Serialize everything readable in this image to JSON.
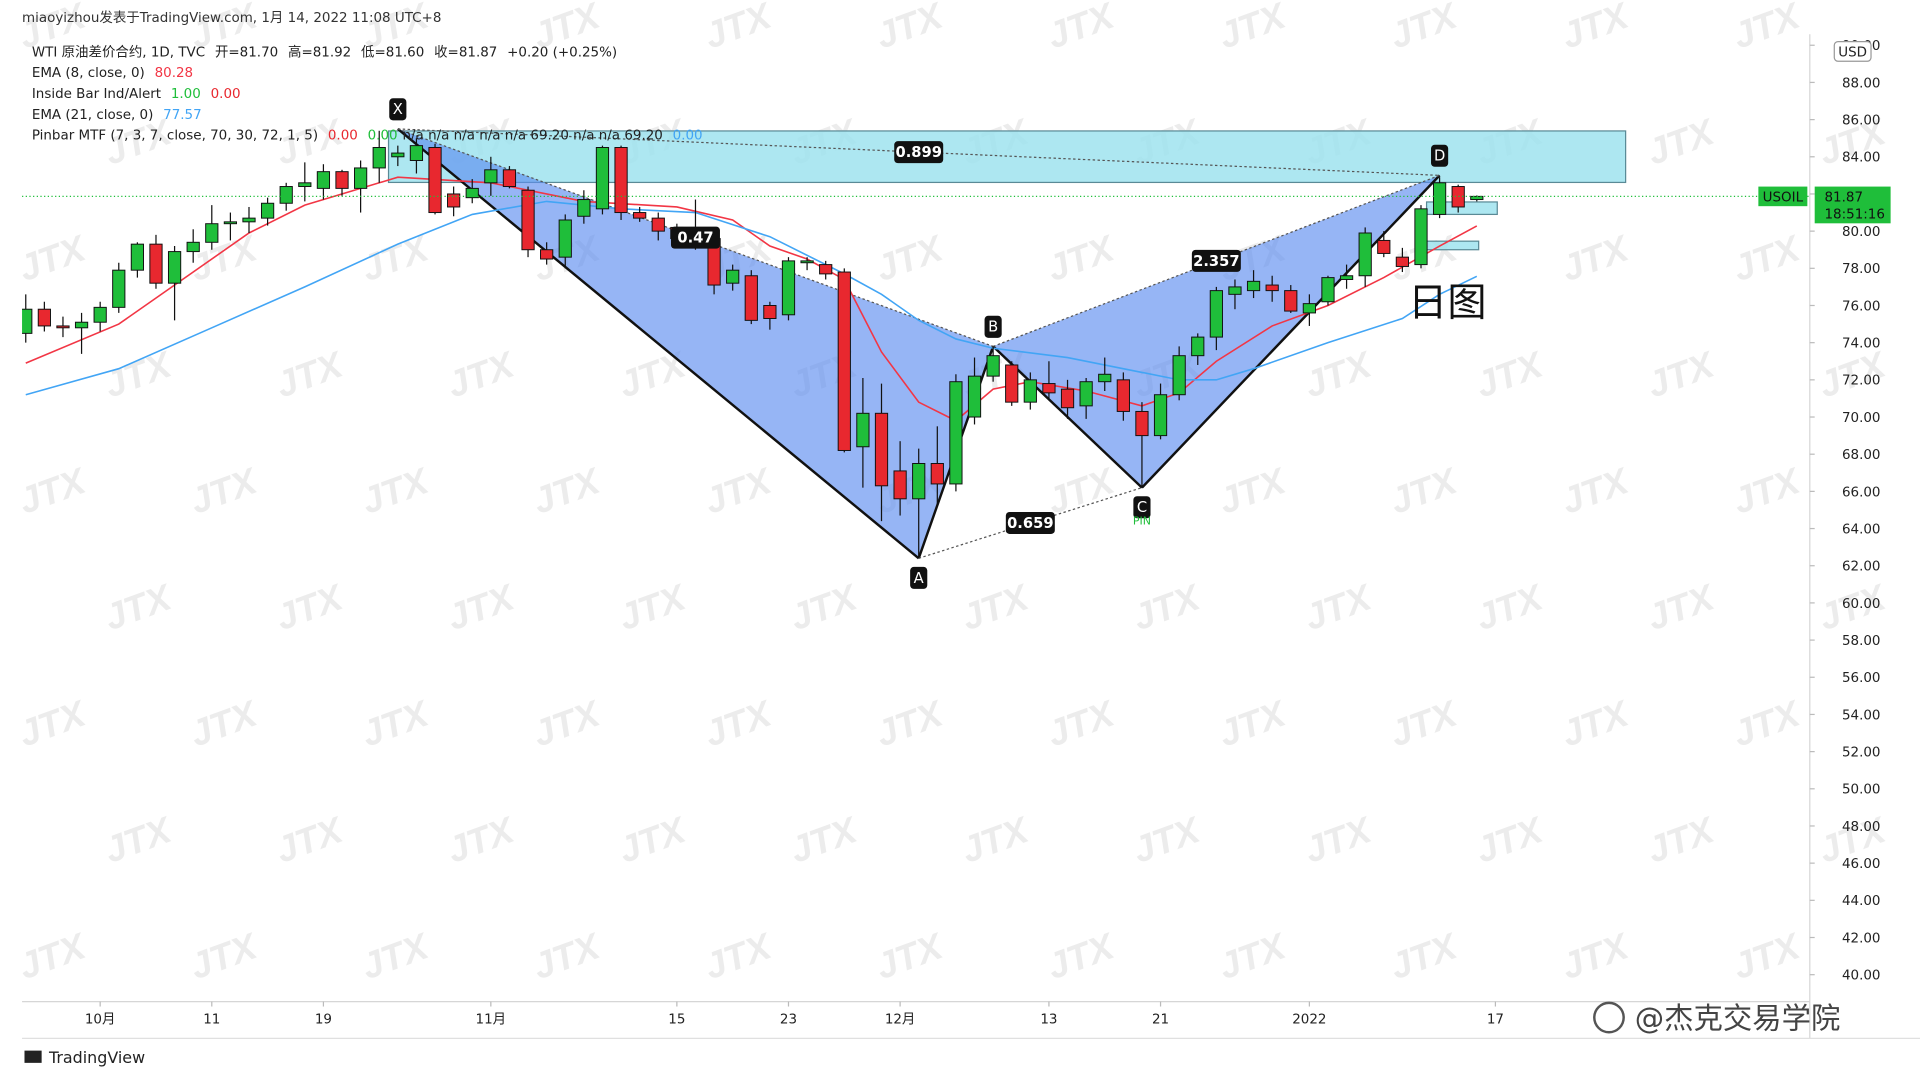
{
  "header": {
    "author": "miaoyizhou发表于TradingView.com, 1月 14, 2022 11:08 UTC+8",
    "logo": "TradingView",
    "currency": "USD",
    "symbol": "USOIL",
    "countdown": "18:51:16",
    "annotation": "日图",
    "signature": "@杰克交易学院",
    "watermark": "JTX",
    "pin": "PIN"
  },
  "legend": {
    "line1": [
      "WTI 原油差价合约, 1D, TVC",
      "开=81.70",
      "高=81.92",
      "低=81.60",
      "收=81.87",
      "+0.20 (+0.25%)"
    ],
    "inside_bar": [
      "Inside Bar Ind/Alert",
      "1.00",
      "0.00"
    ],
    "pinbar": [
      "Pinbar MTF (7, 3, 7, close, 70, 30, 72, 1, 5)",
      "0.00",
      "0.00",
      "n/a n/a n/a n/a n/a 69.20 n/a n/a 69.20",
      "0.00"
    ]
  },
  "chart_data": {
    "type": "candlestick",
    "title": "WTI 原油差价合约, 1D, TVC",
    "up_color": "#1fbe3a",
    "down_color": "#e8282f",
    "xlim": [
      -0.2,
      95.9
    ],
    "ylim": [
      38.55,
      90.59
    ],
    "xticks": [
      {
        "value": 4,
        "label": "10月"
      },
      {
        "value": 10,
        "label": "11"
      },
      {
        "value": 16,
        "label": "19"
      },
      {
        "value": 25,
        "label": "11月"
      },
      {
        "value": 35,
        "label": "15"
      },
      {
        "value": 41,
        "label": "23"
      },
      {
        "value": 47,
        "label": "12月"
      },
      {
        "value": 55,
        "label": "13"
      },
      {
        "value": 61,
        "label": "21"
      },
      {
        "value": 69,
        "label": "2022"
      },
      {
        "value": 79,
        "label": "17"
      }
    ],
    "yticks": [
      {
        "value": 40,
        "label": "40.00"
      },
      {
        "value": 42,
        "label": "42.00"
      },
      {
        "value": 44,
        "label": "44.00"
      },
      {
        "value": 46,
        "label": "46.00"
      },
      {
        "value": 48,
        "label": "48.00"
      },
      {
        "value": 50,
        "label": "50.00"
      },
      {
        "value": 52,
        "label": "52.00"
      },
      {
        "value": 54,
        "label": "54.00"
      },
      {
        "value": 56,
        "label": "56.00"
      },
      {
        "value": 58,
        "label": "58.00"
      },
      {
        "value": 60,
        "label": "60.00"
      },
      {
        "value": 62,
        "label": "62.00"
      },
      {
        "value": 64,
        "label": "64.00"
      },
      {
        "value": 66,
        "label": "66.00"
      },
      {
        "value": 68,
        "label": "68.00"
      },
      {
        "value": 70,
        "label": "70.00"
      },
      {
        "value": 72,
        "label": "72.00"
      },
      {
        "value": 74,
        "label": "74.00"
      },
      {
        "value": 76,
        "label": "76.00"
      },
      {
        "value": 78,
        "label": "78.00"
      },
      {
        "value": 80,
        "label": "80.00"
      },
      {
        "value": 82,
        "label": "82.00"
      },
      {
        "value": 84,
        "label": "84.00"
      },
      {
        "value": 86,
        "label": "86.00"
      },
      {
        "value": 88,
        "label": "88.00"
      },
      {
        "value": 90,
        "label": "90.00"
      }
    ],
    "candles": [
      [
        74.5,
        76.6,
        74.0,
        75.8
      ],
      [
        75.8,
        76.2,
        74.6,
        74.9
      ],
      [
        74.9,
        75.4,
        74.3,
        74.8
      ],
      [
        74.8,
        75.6,
        73.4,
        75.1
      ],
      [
        75.1,
        76.2,
        74.6,
        75.9
      ],
      [
        75.9,
        78.3,
        75.6,
        77.9
      ],
      [
        77.9,
        79.4,
        77.5,
        79.3
      ],
      [
        79.3,
        79.8,
        76.9,
        77.2
      ],
      [
        77.2,
        79.2,
        75.2,
        78.9
      ],
      [
        78.9,
        80.1,
        78.3,
        79.4
      ],
      [
        79.4,
        81.4,
        79.0,
        80.4
      ],
      [
        80.4,
        81.0,
        79.5,
        80.5
      ],
      [
        80.5,
        81.3,
        79.9,
        80.7
      ],
      [
        80.7,
        81.8,
        80.3,
        81.5
      ],
      [
        81.5,
        82.6,
        81.1,
        82.4
      ],
      [
        82.4,
        83.7,
        81.6,
        82.6
      ],
      [
        82.3,
        83.6,
        81.7,
        83.2
      ],
      [
        83.2,
        83.3,
        81.9,
        82.3
      ],
      [
        82.3,
        83.8,
        81.0,
        83.4
      ],
      [
        83.4,
        85.4,
        82.6,
        84.5
      ],
      [
        84.0,
        84.6,
        83.5,
        84.2
      ],
      [
        83.8,
        85.0,
        83.1,
        84.6
      ],
      [
        84.5,
        84.7,
        80.9,
        81.0
      ],
      [
        82.0,
        82.4,
        80.8,
        81.3
      ],
      [
        81.8,
        82.8,
        81.5,
        82.3
      ],
      [
        82.6,
        84.0,
        81.9,
        83.3
      ],
      [
        83.3,
        83.5,
        82.3,
        82.4
      ],
      [
        82.2,
        82.4,
        78.6,
        79.0
      ],
      [
        79.0,
        79.4,
        78.2,
        78.5
      ],
      [
        78.6,
        80.9,
        78.0,
        80.6
      ],
      [
        80.8,
        82.2,
        80.4,
        81.7
      ],
      [
        81.2,
        84.6,
        80.9,
        84.5
      ],
      [
        84.5,
        84.6,
        80.6,
        81.0
      ],
      [
        81.0,
        81.3,
        80.5,
        80.7
      ],
      [
        80.7,
        81.0,
        79.5,
        80.0
      ],
      [
        80.2,
        80.4,
        79.4,
        79.6
      ],
      [
        80.0,
        81.7,
        79.0,
        79.3
      ],
      [
        79.6,
        79.8,
        76.6,
        77.1
      ],
      [
        77.2,
        78.2,
        76.8,
        77.9
      ],
      [
        77.6,
        77.9,
        75.0,
        75.2
      ],
      [
        76.0,
        76.2,
        74.7,
        75.3
      ],
      [
        75.5,
        78.6,
        75.2,
        78.4
      ],
      [
        78.3,
        78.6,
        77.9,
        78.4
      ],
      [
        78.2,
        78.4,
        77.4,
        77.7
      ],
      [
        77.8,
        78.0,
        68.1,
        68.2
      ],
      [
        68.4,
        72.1,
        66.2,
        70.2
      ],
      [
        70.2,
        71.8,
        64.4,
        66.3
      ],
      [
        67.1,
        68.7,
        64.7,
        65.6
      ],
      [
        65.6,
        68.3,
        62.4,
        67.5
      ],
      [
        67.5,
        69.5,
        65.3,
        66.4
      ],
      [
        66.4,
        72.3,
        66.0,
        71.9
      ],
      [
        70.0,
        73.2,
        69.6,
        72.2
      ],
      [
        72.2,
        73.8,
        71.9,
        73.3
      ],
      [
        72.8,
        73.0,
        70.6,
        70.8
      ],
      [
        70.8,
        72.4,
        70.4,
        72.0
      ],
      [
        71.8,
        73.0,
        71.0,
        71.3
      ],
      [
        71.5,
        72.0,
        69.9,
        70.5
      ],
      [
        70.6,
        72.1,
        69.9,
        71.9
      ],
      [
        71.9,
        73.2,
        71.4,
        72.3
      ],
      [
        72.0,
        72.4,
        69.8,
        70.3
      ],
      [
        70.3,
        70.8,
        66.2,
        69.0
      ],
      [
        69.0,
        71.8,
        68.8,
        71.2
      ],
      [
        71.2,
        73.8,
        70.9,
        73.3
      ],
      [
        73.3,
        74.5,
        72.8,
        74.3
      ],
      [
        74.3,
        77.0,
        73.6,
        76.8
      ],
      [
        76.6,
        77.4,
        75.8,
        77.0
      ],
      [
        76.8,
        77.9,
        76.4,
        77.3
      ],
      [
        77.1,
        77.6,
        76.2,
        76.8
      ],
      [
        76.8,
        77.1,
        75.6,
        75.7
      ],
      [
        75.6,
        76.6,
        74.9,
        76.1
      ],
      [
        76.2,
        77.6,
        76.0,
        77.5
      ],
      [
        77.4,
        78.2,
        76.9,
        77.6
      ],
      [
        77.6,
        80.2,
        77.0,
        79.9
      ],
      [
        79.5,
        80.0,
        78.6,
        78.8
      ],
      [
        78.6,
        79.1,
        77.8,
        78.1
      ],
      [
        78.2,
        81.4,
        78.0,
        81.2
      ],
      [
        80.9,
        82.9,
        80.7,
        82.6
      ],
      [
        82.4,
        82.5,
        81.0,
        81.3
      ],
      [
        81.7,
        81.92,
        81.6,
        81.87
      ]
    ],
    "series": [
      {
        "name": "EMA (8, close, 0)",
        "color": "#f23645",
        "legend_value": "80.28",
        "x": [
          0,
          5,
          12,
          15,
          20,
          25,
          30,
          35,
          38,
          40,
          42,
          44,
          46,
          48,
          50,
          52,
          54,
          57,
          60,
          62,
          64,
          67,
          70,
          73,
          76,
          78
        ],
        "values": [
          72.9,
          75.0,
          79.9,
          81.4,
          82.9,
          82.6,
          81.6,
          81.3,
          80.6,
          79.2,
          78.5,
          77.4,
          73.5,
          70.8,
          69.8,
          71.5,
          71.9,
          71.4,
          70.6,
          71.3,
          73.0,
          74.9,
          76.0,
          77.5,
          79.2,
          80.28
        ]
      },
      {
        "name": "EMA (21, close, 0)",
        "color": "#42a5f5",
        "legend_value": "77.57",
        "x": [
          0,
          5,
          10,
          15,
          20,
          24,
          28,
          32,
          36,
          40,
          44,
          46,
          48,
          50,
          52,
          56,
          60,
          62,
          64,
          66,
          70,
          74,
          76,
          78
        ],
        "values": [
          71.2,
          72.6,
          74.8,
          77.0,
          79.3,
          80.9,
          81.6,
          81.2,
          81.0,
          79.7,
          77.7,
          76.6,
          75.2,
          74.2,
          73.7,
          73.2,
          72.4,
          72.0,
          72.0,
          72.6,
          74.0,
          75.3,
          76.6,
          77.57
        ]
      }
    ],
    "pattern": {
      "points": [
        {
          "label": "X",
          "x": 20,
          "value": 85.5
        },
        {
          "label": "A",
          "x": 48,
          "value": 62.4
        },
        {
          "label": "B",
          "x": 52,
          "value": 73.8
        },
        {
          "label": "C",
          "x": 60,
          "value": 66.2
        },
        {
          "label": "D",
          "x": 76,
          "value": 83.0
        }
      ],
      "ratios": [
        0.47,
        0.659,
        2.357,
        0.899
      ]
    },
    "zones": [
      {
        "x": [
          19.5,
          86
        ],
        "y": [
          82.62,
          85.39
        ]
      },
      {
        "x": [
          75.3,
          79.1
        ],
        "y": [
          80.9,
          81.57
        ]
      },
      {
        "x": [
          75.3,
          78.1
        ],
        "y": [
          79.0,
          79.46
        ]
      }
    ]
  }
}
